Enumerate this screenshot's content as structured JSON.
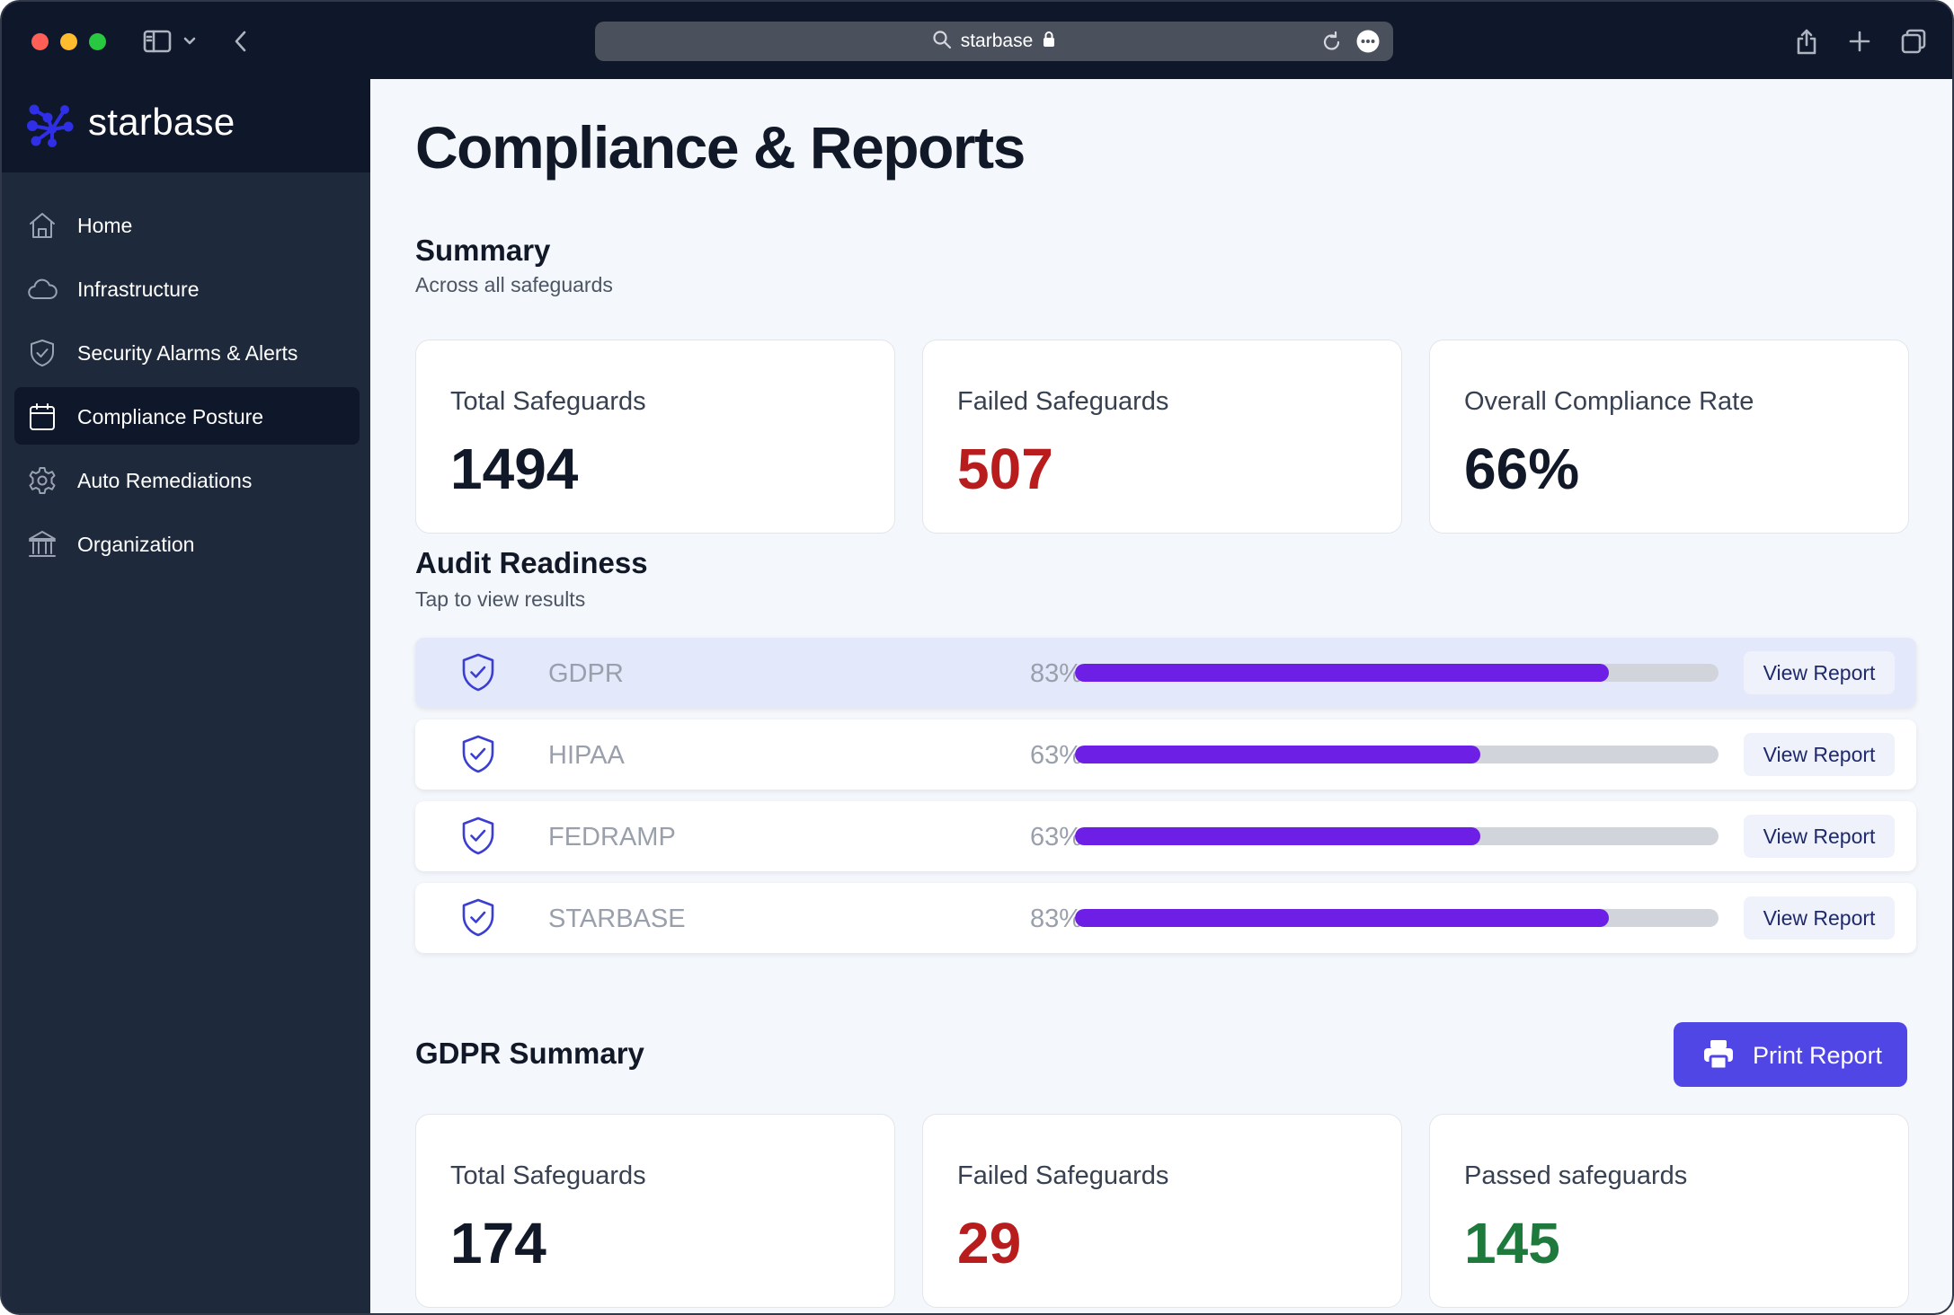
{
  "browser": {
    "address_text": "starbase",
    "icons": [
      "sidebar-toggle-icon",
      "chevron-down-icon",
      "back-icon",
      "search-icon",
      "lock-icon",
      "reload-icon",
      "more-icon",
      "share-icon",
      "new-tab-icon",
      "tabs-overview-icon"
    ]
  },
  "brand": {
    "name": "starbase",
    "accent": "#2f2fe8"
  },
  "sidebar": {
    "items": [
      {
        "label": "Home",
        "icon": "home-icon"
      },
      {
        "label": "Infrastructure",
        "icon": "cloud-icon"
      },
      {
        "label": "Security Alarms & Alerts",
        "icon": "shield-icon"
      },
      {
        "label": "Compliance Posture",
        "icon": "calendar-icon",
        "active": true
      },
      {
        "label": "Auto Remediations",
        "icon": "gear-icon"
      },
      {
        "label": "Organization",
        "icon": "bank-icon"
      }
    ]
  },
  "page": {
    "title": "Compliance & Reports"
  },
  "summary": {
    "title": "Summary",
    "subtitle": "Across all safeguards",
    "cards": [
      {
        "label": "Total Safeguards",
        "value": "1494",
        "color": "#111827"
      },
      {
        "label": "Failed Safeguards",
        "value": "507",
        "color": "#b91c1c"
      },
      {
        "label": "Overall Compliance Rate",
        "value": "66%",
        "color": "#111827"
      }
    ]
  },
  "audit": {
    "title": "Audit Readiness",
    "subtitle": "Tap to view results",
    "bar_color": "#6d1fe6",
    "rows": [
      {
        "name": "GDPR",
        "percent_label": "83%",
        "percent": 83,
        "button": "View Report",
        "selected": true
      },
      {
        "name": "HIPAA",
        "percent_label": "63%",
        "percent": 63,
        "button": "View Report"
      },
      {
        "name": "FEDRAMP",
        "percent_label": "63%",
        "percent": 63,
        "button": "View Report"
      },
      {
        "name": "STARBASE",
        "percent_label": "83%",
        "percent": 83,
        "button": "View Report"
      }
    ]
  },
  "gdpr": {
    "title": "GDPR Summary",
    "print_button": "Print Report",
    "cards": [
      {
        "label": "Total Safeguards",
        "value": "174",
        "color": "#111827"
      },
      {
        "label": "Failed Safeguards",
        "value": "29",
        "color": "#b91c1c"
      },
      {
        "label": "Passed safeguards",
        "value": "145",
        "color": "#1e7a3c"
      }
    ]
  }
}
